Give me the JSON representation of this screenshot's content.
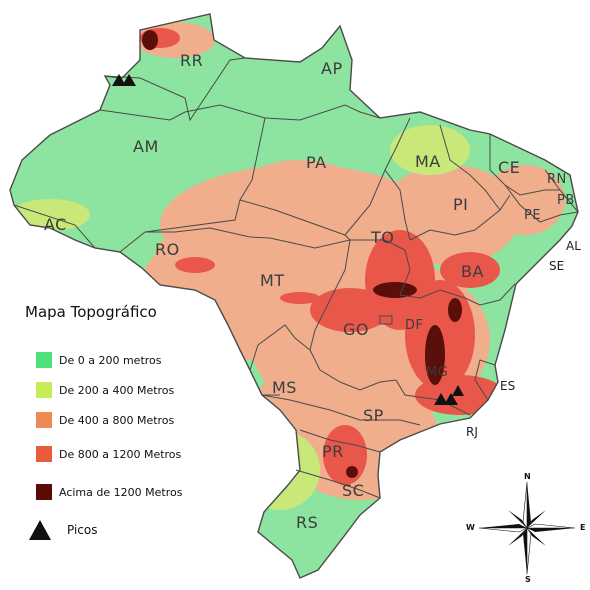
{
  "map": {
    "colors": {
      "band_0_200": "#8de3a0",
      "band_200_400": "#c9e87a",
      "band_400_800": "#f0ae8c",
      "band_800_1200": "#e9574b",
      "band_above_1200": "#5a0f0a",
      "border": "#4a4a4a"
    },
    "states": [
      {
        "abbr": "RR"
      },
      {
        "abbr": "AP"
      },
      {
        "abbr": "AM"
      },
      {
        "abbr": "PA"
      },
      {
        "abbr": "MA"
      },
      {
        "abbr": "CE"
      },
      {
        "abbr": "RN"
      },
      {
        "abbr": "PB"
      },
      {
        "abbr": "PI"
      },
      {
        "abbr": "PE"
      },
      {
        "abbr": "AC"
      },
      {
        "abbr": "RO"
      },
      {
        "abbr": "TO"
      },
      {
        "abbr": "BA"
      },
      {
        "abbr": "MT"
      },
      {
        "abbr": "GO"
      },
      {
        "abbr": "DF"
      },
      {
        "abbr": "MG"
      },
      {
        "abbr": "MS"
      },
      {
        "abbr": "ES"
      },
      {
        "abbr": "SP"
      },
      {
        "abbr": "RJ"
      },
      {
        "abbr": "PR"
      },
      {
        "abbr": "SC"
      },
      {
        "abbr": "RS"
      },
      {
        "abbr": "AL"
      },
      {
        "abbr": "SE"
      }
    ]
  },
  "legend": {
    "title": "Mapa Topográfico",
    "items": [
      {
        "label": "De 0 a 200 metros",
        "color": "#4fe07c"
      },
      {
        "label": "De 200 a 400 Metros",
        "color": "#c4ec55"
      },
      {
        "label": "De 400 a 800 Metros",
        "color": "#eb8b55"
      },
      {
        "label": "De 800 a 1200 Metros",
        "color": "#ea5a3e"
      },
      {
        "label": "Acima de 1200 Metros",
        "color": "#5a0b06"
      }
    ],
    "peaks_label": "Picos"
  },
  "compass": {
    "north": "N",
    "south": "S",
    "east": "E",
    "west": "W"
  }
}
